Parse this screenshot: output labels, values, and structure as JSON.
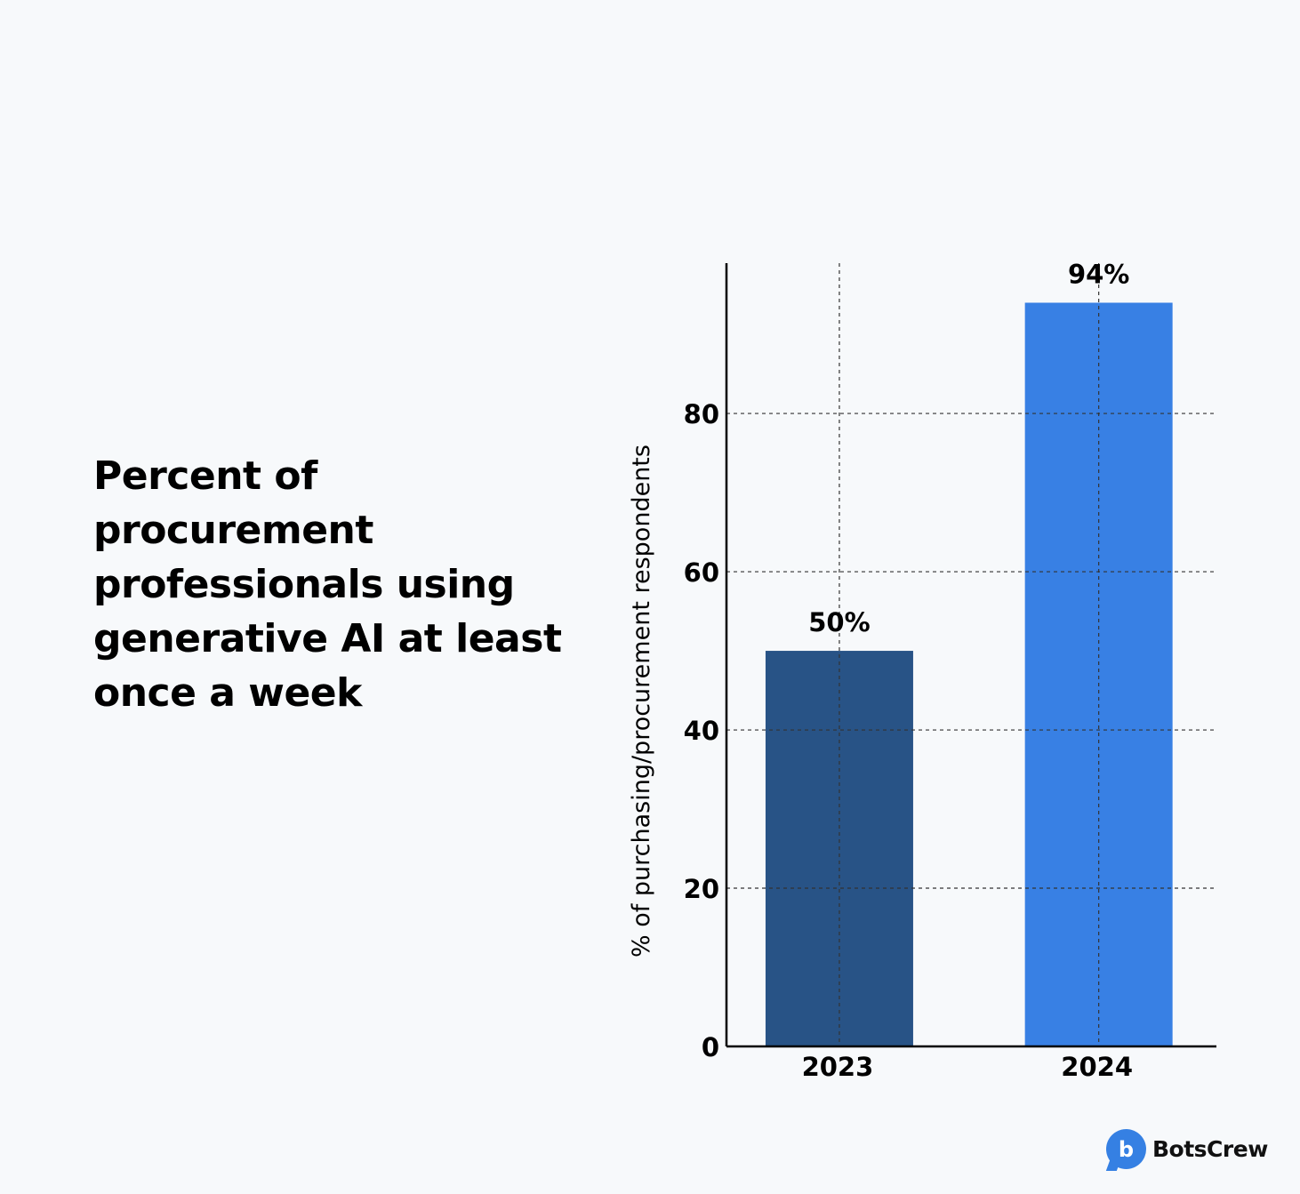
{
  "title": "Percent of procurement professionals using generative AI at least once a week",
  "chart_data": {
    "type": "bar",
    "categories": [
      "2023",
      "2024"
    ],
    "values": [
      50,
      94
    ],
    "data_labels": [
      "50%",
      "94%"
    ],
    "bar_colors": [
      "#285386",
      "#3880e4"
    ],
    "ylabel": "% of purchasing/procurement respondents",
    "xlabel": "",
    "ylim": [
      0,
      99
    ],
    "yticks": [
      0,
      20,
      40,
      60,
      80
    ],
    "grid": "dashed, both axes",
    "legend": "none"
  },
  "brand": {
    "name": "BotsCrew",
    "mark": "b"
  }
}
